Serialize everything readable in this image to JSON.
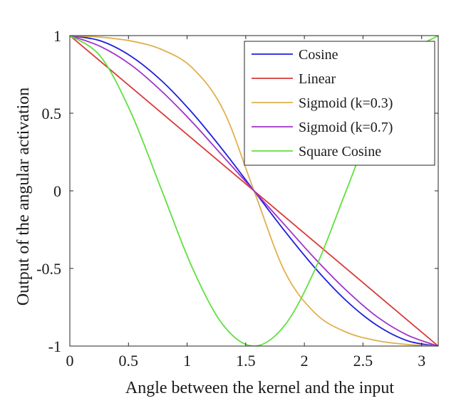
{
  "chart_data": {
    "type": "line",
    "xlabel": "Angle between the kernel and the input",
    "ylabel": "Output of the angular activation",
    "xlim": [
      0,
      3.14159
    ],
    "ylim": [
      -1,
      1
    ],
    "xticks": [
      0,
      0.5,
      1,
      1.5,
      2,
      2.5,
      3
    ],
    "xtick_labels": [
      "0",
      "0.5",
      "1",
      "1.5",
      "2",
      "2.5",
      "3"
    ],
    "yticks": [
      1,
      0.5,
      0,
      -0.5,
      -1
    ],
    "ytick_labels": [
      "1",
      "0.5",
      "0",
      "-0.5",
      "-1"
    ],
    "grid": false,
    "legend_position": "top-right",
    "x": [
      0,
      0.2618,
      0.5236,
      0.7854,
      1.0472,
      1.309,
      1.5708,
      1.8326,
      2.0944,
      2.3562,
      2.618,
      2.8798,
      3.1416
    ],
    "series": [
      {
        "name": "Cosine",
        "color": "#1f1fde",
        "values": [
          1.0,
          0.966,
          0.866,
          0.707,
          0.5,
          0.259,
          0.0,
          -0.259,
          -0.5,
          -0.707,
          -0.866,
          -0.966,
          -1.0
        ]
      },
      {
        "name": "Linear",
        "color": "#d93a3a",
        "values": [
          1.0,
          0.833,
          0.667,
          0.5,
          0.333,
          0.167,
          0.0,
          -0.167,
          -0.333,
          -0.5,
          -0.667,
          -0.833,
          -1.0
        ]
      },
      {
        "name": "Sigmoid (k=0.3)",
        "color": "#e0b050",
        "values": [
          1.0,
          0.99,
          0.965,
          0.91,
          0.79,
          0.52,
          0.0,
          -0.52,
          -0.79,
          -0.91,
          -0.965,
          -0.99,
          -1.0
        ]
      },
      {
        "name": "Sigmoid (k=0.7)",
        "color": "#a032c8",
        "values": [
          1.0,
          0.93,
          0.81,
          0.64,
          0.44,
          0.22,
          0.0,
          -0.22,
          -0.44,
          -0.64,
          -0.81,
          -0.93,
          -1.0
        ]
      },
      {
        "name": "Square Cosine",
        "color": "#60e040",
        "values": [
          1.0,
          0.866,
          0.5,
          0.0,
          -0.5,
          -0.866,
          -1.0,
          -0.866,
          -0.5,
          0.0,
          0.5,
          0.866,
          1.0
        ]
      }
    ]
  }
}
